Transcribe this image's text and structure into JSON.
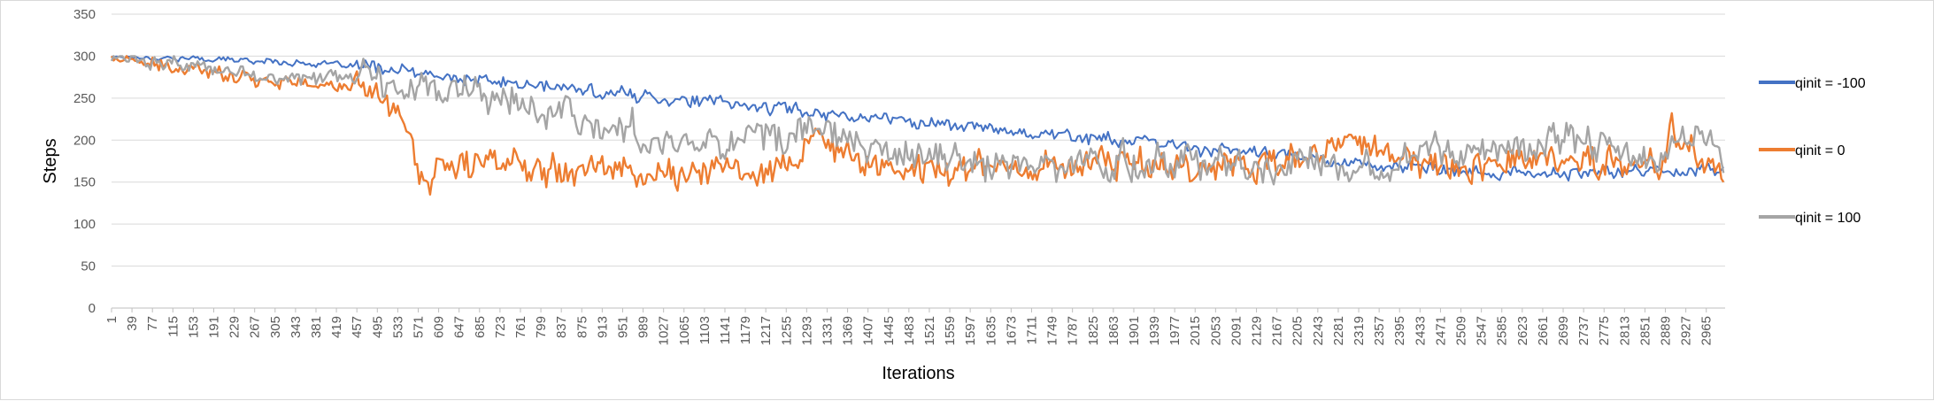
{
  "chart_data": {
    "type": "line",
    "xlabel": "Iterations",
    "ylabel": "Steps",
    "ylim": [
      0,
      350
    ],
    "yticks": [
      0,
      50,
      100,
      150,
      200,
      250,
      300,
      350
    ],
    "xlim": [
      1,
      3000
    ],
    "xticks": [
      1,
      39,
      77,
      115,
      153,
      191,
      229,
      267,
      305,
      343,
      381,
      419,
      457,
      495,
      533,
      571,
      609,
      647,
      685,
      723,
      761,
      799,
      837,
      875,
      913,
      951,
      989,
      1027,
      1065,
      1103,
      1141,
      1179,
      1217,
      1255,
      1293,
      1331,
      1369,
      1407,
      1445,
      1483,
      1521,
      1559,
      1597,
      1635,
      1673,
      1711,
      1749,
      1787,
      1825,
      1863,
      1901,
      1939,
      1977,
      2015,
      2053,
      2091,
      2129,
      2167,
      2205,
      2243,
      2281,
      2319,
      2357,
      2395,
      2433,
      2471,
      2509,
      2547,
      2585,
      2623,
      2661,
      2699,
      2737,
      2775,
      2813,
      2851,
      2889,
      2927,
      2965
    ],
    "grid": true,
    "legend_position": "right",
    "x": [
      1,
      100,
      200,
      300,
      400,
      500,
      540,
      580,
      620,
      700,
      800,
      900,
      1000,
      1100,
      1200,
      1280,
      1300,
      1400,
      1500,
      1600,
      1700,
      1800,
      1900,
      2000,
      2100,
      2200,
      2280,
      2300,
      2400,
      2500,
      2600,
      2700,
      2800,
      2880,
      2900,
      2950,
      3000
    ],
    "series": [
      {
        "name": "qinit =  -100",
        "color": "#4472C4",
        "values": [
          300,
          298,
          296,
          294,
          290,
          286,
          282,
          278,
          274,
          270,
          264,
          258,
          252,
          246,
          240,
          236,
          234,
          228,
          222,
          216,
          210,
          204,
          198,
          192,
          186,
          180,
          176,
          174,
          168,
          162,
          160,
          160,
          162,
          164,
          165,
          165,
          165
        ]
      },
      {
        "name": "qinit = 0",
        "color": "#ED7D31",
        "values": [
          300,
          285,
          280,
          272,
          265,
          258,
          230,
          150,
          165,
          175,
          172,
          170,
          160,
          162,
          165,
          175,
          200,
          172,
          165,
          170,
          168,
          172,
          175,
          170,
          170,
          172,
          190,
          205,
          175,
          170,
          178,
          175,
          172,
          168,
          215,
          180,
          150
        ]
      },
      {
        "name": "qinit = 100",
        "color": "#A5A5A5",
        "values": [
          300,
          292,
          282,
          275,
          272,
          275,
          270,
          265,
          260,
          250,
          240,
          225,
          200,
          200,
          205,
          205,
          215,
          190,
          180,
          175,
          168,
          170,
          175,
          172,
          175,
          168,
          175,
          172,
          180,
          190,
          195,
          205,
          185,
          175,
          190,
          205,
          175
        ]
      }
    ]
  }
}
